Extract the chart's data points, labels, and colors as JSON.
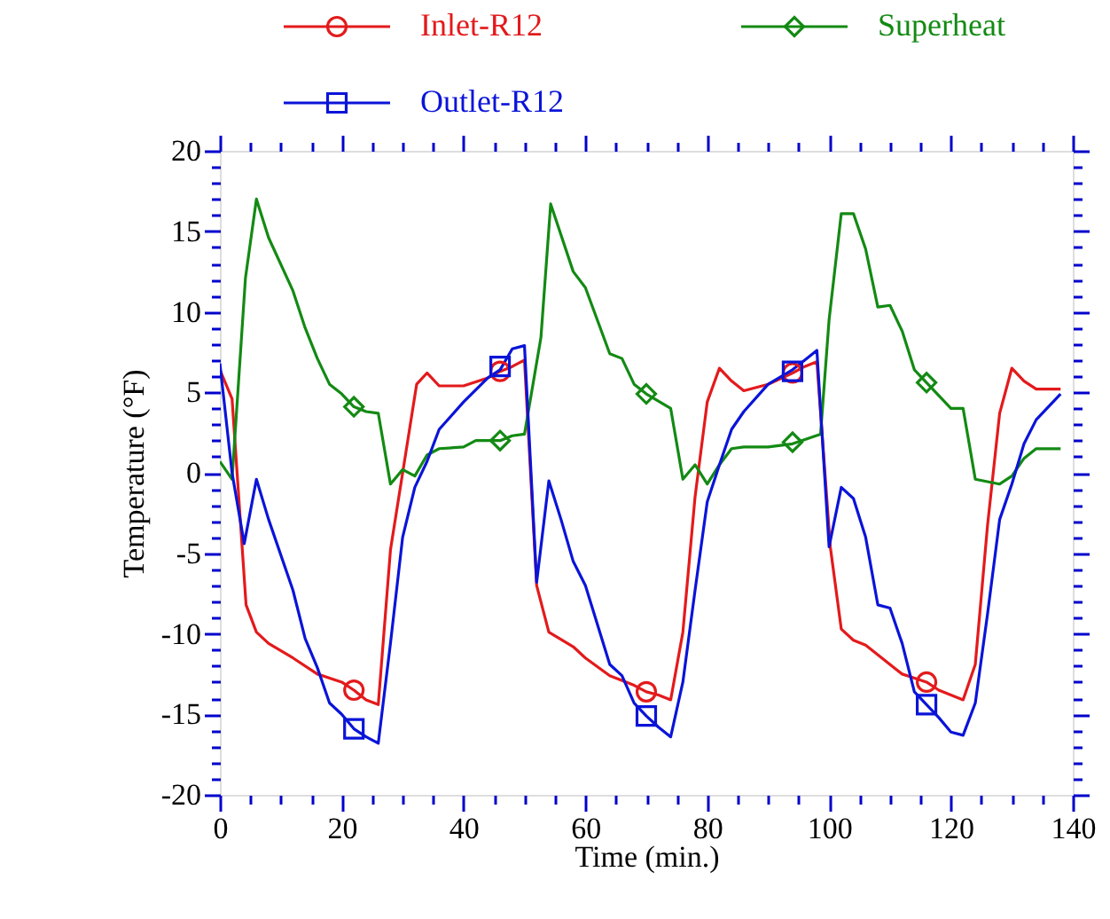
{
  "chart_data": {
    "type": "line",
    "xlabel": "Time (min.)",
    "ylabel": "Temperature (°F)",
    "legend": "top",
    "xlim": [
      0,
      140
    ],
    "ylim": [
      -20,
      20
    ],
    "xticks": [
      0,
      {
        "value": 5,
        "label": null
      },
      {
        "value": 10,
        "label": null
      },
      {
        "value": 15,
        "label": null
      },
      20,
      {
        "value": 25,
        "label": null
      },
      {
        "value": 30,
        "label": null
      },
      {
        "value": 35,
        "label": null
      },
      40,
      {
        "value": 45,
        "label": null
      },
      {
        "value": 50,
        "label": null
      },
      {
        "value": 55,
        "label": null
      },
      60,
      {
        "value": 65,
        "label": null
      },
      {
        "value": 70,
        "label": null
      },
      {
        "value": 75,
        "label": null
      },
      80,
      {
        "value": 85,
        "label": null
      },
      {
        "value": 90,
        "label": null
      },
      {
        "value": 95,
        "label": null
      },
      100,
      {
        "value": 105,
        "label": null
      },
      {
        "value": 110,
        "label": null
      },
      {
        "value": 115,
        "label": null
      },
      120,
      {
        "value": 125,
        "label": null
      },
      {
        "value": 130,
        "label": null
      },
      {
        "value": 135,
        "label": null
      },
      140
    ],
    "yticks": [
      -20,
      {
        "value": -19,
        "label": null
      },
      {
        "value": -18,
        "label": null
      },
      {
        "value": -17,
        "label": null
      },
      {
        "value": -16,
        "label": null
      },
      -15,
      {
        "value": -14,
        "label": null
      },
      {
        "value": -13,
        "label": null
      },
      {
        "value": -12,
        "label": null
      },
      {
        "value": -11,
        "label": null
      },
      -10,
      {
        "value": -9,
        "label": null
      },
      {
        "value": -8,
        "label": null
      },
      {
        "value": -7,
        "label": null
      },
      {
        "value": -6,
        "label": null
      },
      -5,
      {
        "value": -4,
        "label": null
      },
      {
        "value": -3,
        "label": null
      },
      {
        "value": -2,
        "label": null
      },
      {
        "value": -1,
        "label": null
      },
      0,
      {
        "value": 1,
        "label": null
      },
      {
        "value": 2,
        "label": null
      },
      {
        "value": 3,
        "label": null
      },
      {
        "value": 4,
        "label": null
      },
      5,
      {
        "value": 6,
        "label": null
      },
      {
        "value": 7,
        "label": null
      },
      {
        "value": 8,
        "label": null
      },
      {
        "value": 9,
        "label": null
      },
      10,
      {
        "value": 11,
        "label": null
      },
      {
        "value": 12,
        "label": null
      },
      {
        "value": 13,
        "label": null
      },
      {
        "value": 14,
        "label": null
      },
      15,
      {
        "value": 16,
        "label": null
      },
      {
        "value": 17,
        "label": null
      },
      {
        "value": 18,
        "label": null
      },
      {
        "value": 19,
        "label": null
      },
      20
    ],
    "series": [
      {
        "name": "Inlet-R12",
        "color": "#e31a1c",
        "x": [
          0,
          2,
          4.3,
          6,
          8,
          12,
          16,
          20,
          22,
          24,
          26,
          28,
          32.3,
          34,
          36,
          40,
          44,
          46,
          48,
          50,
          52,
          54,
          58,
          60,
          64,
          68,
          70,
          72,
          74,
          76,
          78,
          80,
          82,
          84,
          86,
          90,
          94,
          96,
          98,
          100.2,
          102,
          104,
          106,
          112,
          116,
          118,
          122,
          124,
          126,
          128,
          130,
          132,
          134,
          138
        ],
        "values": [
          6.4,
          4.6,
          -8.2,
          -9.9,
          -10.6,
          -11.5,
          -12.5,
          -13.0,
          -13.5,
          -14.1,
          -14.4,
          -4.8,
          5.5,
          6.2,
          5.4,
          5.4,
          5.9,
          6.3,
          6.6,
          7.0,
          -7.0,
          -9.9,
          -10.8,
          -11.5,
          -12.6,
          -13.2,
          -13.6,
          -13.8,
          -14.1,
          -9.9,
          -1.5,
          4.4,
          6.5,
          5.7,
          5.1,
          5.5,
          6.2,
          6.6,
          6.9,
          -4.6,
          -9.7,
          -10.4,
          -10.7,
          -12.5,
          -13.0,
          -13.5,
          -14.1,
          -11.9,
          -3.3,
          3.7,
          6.5,
          5.7,
          5.2,
          5.2
        ]
      },
      {
        "name": "Superheat",
        "color": "#138a13",
        "x": [
          0,
          2,
          4.2,
          6,
          8,
          12,
          14,
          16,
          18,
          20,
          22,
          24,
          26,
          28,
          30,
          32,
          34,
          36,
          40,
          42,
          46,
          48,
          50,
          52.7,
          54.3,
          58,
          60,
          64,
          66,
          68,
          70,
          74,
          76,
          78,
          80,
          82,
          84,
          86,
          90,
          94,
          98.6,
          100,
          102,
          104,
          106,
          108,
          110,
          112,
          114,
          116,
          118,
          120,
          122,
          124,
          128,
          130,
          132,
          134,
          138
        ],
        "values": [
          0.7,
          -0.4,
          12.1,
          17.0,
          14.6,
          11.3,
          9.0,
          7.1,
          5.5,
          4.9,
          4.1,
          3.8,
          3.7,
          -0.7,
          0.2,
          -0.2,
          1.1,
          1.5,
          1.6,
          2.0,
          2.0,
          2.3,
          2.4,
          8.4,
          16.7,
          12.5,
          11.5,
          7.4,
          7.1,
          5.5,
          4.9,
          4.0,
          -0.4,
          0.5,
          -0.7,
          0.5,
          1.5,
          1.6,
          1.6,
          1.8,
          2.4,
          9.5,
          16.1,
          16.1,
          13.9,
          10.3,
          10.4,
          8.8,
          6.4,
          5.6,
          4.8,
          4.0,
          4.0,
          -0.4,
          -0.7,
          -0.2,
          0.9,
          1.5,
          1.5
        ]
      },
      {
        "name": "Outlet-R12",
        "color": "#0a14d8",
        "x": [
          0,
          2,
          4,
          6,
          8,
          12,
          14,
          16,
          18,
          20,
          22,
          24,
          26,
          28,
          30,
          32,
          34,
          36,
          40,
          44,
          46,
          48,
          50,
          52,
          54,
          56,
          58,
          60,
          64,
          66,
          68,
          70,
          72,
          74,
          76,
          78,
          80,
          82,
          84,
          86,
          90,
          94,
          96,
          98,
          100,
          102,
          104,
          106,
          108,
          110,
          112,
          114,
          116,
          118,
          120,
          122,
          124,
          126,
          128,
          130,
          132,
          134,
          138
        ],
        "values": [
          6.8,
          0,
          -4.4,
          -0.4,
          -2.9,
          -7.3,
          -10.3,
          -12.1,
          -14.3,
          -15.0,
          -15.9,
          -16.4,
          -16.8,
          -10.6,
          -4.0,
          -0.9,
          0.7,
          2.7,
          4.4,
          5.9,
          6.4,
          7.7,
          7.9,
          -6.8,
          -0.5,
          -2.9,
          -5.5,
          -7.0,
          -11.9,
          -12.6,
          -14.3,
          -15.1,
          -15.8,
          -16.4,
          -13.0,
          -7.3,
          -1.8,
          0.5,
          2.7,
          3.8,
          5.5,
          6.4,
          7.0,
          7.6,
          -4.6,
          -0.9,
          -1.6,
          -4.0,
          -8.2,
          -8.4,
          -10.6,
          -13.6,
          -14.4,
          -15.2,
          -16.1,
          -16.3,
          -14.3,
          -8.8,
          -2.9,
          -0.7,
          1.8,
          3.3,
          4.9
        ]
      },
      {
        "type": "scatter",
        "color": "#e31a1c",
        "marker": "circle",
        "x": [
          22,
          46,
          70,
          94,
          116
        ],
        "values": [
          -13.5,
          6.3,
          -13.6,
          6.2,
          -13.0
        ]
      },
      {
        "type": "scatter",
        "color": "#138a13",
        "marker": "diamond",
        "x": [
          22,
          46,
          70,
          94,
          116
        ],
        "values": [
          4.1,
          2.0,
          4.9,
          1.9,
          5.6
        ]
      },
      {
        "type": "scatter",
        "color": "#0a14d8",
        "marker": "square",
        "x": [
          22,
          46,
          70,
          94,
          116
        ],
        "values": [
          -15.9,
          6.6,
          -15.1,
          6.3,
          -14.4
        ]
      }
    ]
  }
}
